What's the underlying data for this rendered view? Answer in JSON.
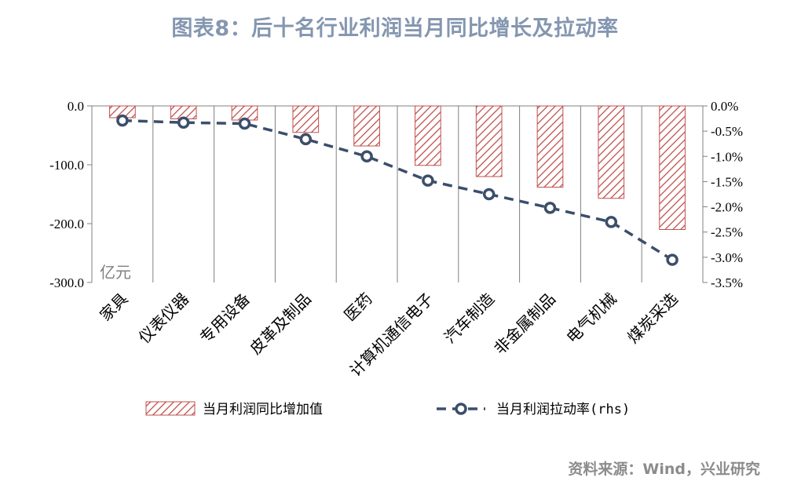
{
  "title": "图表8：后十名行业利润当月同比增长及拉动率",
  "source": "资料来源：Wind，兴业研究",
  "colors": {
    "bar_stroke": "#c0504d",
    "line": "#3b4e6b",
    "title": "#8496b0"
  },
  "chart_data": {
    "type": "bar",
    "categories": [
      "家具",
      "仪表仪器",
      "专用设备",
      "皮革及制品",
      "医药",
      "计算机通信电子",
      "汽车制造",
      "非金属制品",
      "电气机械",
      "煤炭采选"
    ],
    "unit_label": "亿元",
    "y_left": {
      "ylim": [
        -300,
        0
      ],
      "ticks": [
        0,
        -100,
        -200,
        -300
      ],
      "tick_labels": [
        "0.0",
        "-100.0",
        "-200.0",
        "-300.0"
      ]
    },
    "y_right": {
      "ylim": [
        -3.5,
        0
      ],
      "ticks": [
        0,
        -0.5,
        -1,
        -1.5,
        -2,
        -2.5,
        -3,
        -3.5
      ],
      "tick_labels": [
        "0.0%",
        "-0.5%",
        "-1.0%",
        "-1.5%",
        "-2.0%",
        "-2.5%",
        "-3.0%",
        "-3.5%"
      ]
    },
    "series": [
      {
        "name": "当月利润同比增加值",
        "type": "bar",
        "axis": "left",
        "values": [
          -20,
          -22,
          -24,
          -45,
          -68,
          -101,
          -120,
          -138,
          -157,
          -210
        ]
      },
      {
        "name": "当月利润拉动率(rhs)",
        "type": "line",
        "axis": "right",
        "values": [
          -0.29,
          -0.33,
          -0.35,
          -0.66,
          -1.0,
          -1.48,
          -1.75,
          -2.02,
          -2.3,
          -3.05
        ]
      }
    ],
    "legend_position": "bottom",
    "grid": false
  }
}
